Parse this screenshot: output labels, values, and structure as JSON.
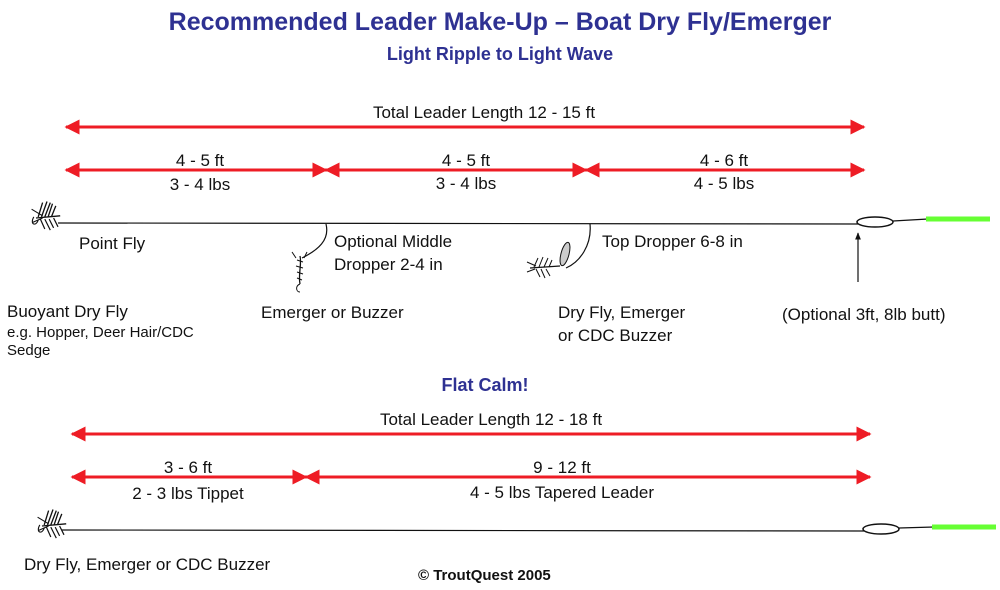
{
  "title": "Recommended Leader Make-Up – Boat Dry Fly/Emerger",
  "subtitle": "Light Ripple to Light Wave",
  "top_rig": {
    "total_length": "Total Leader Length 12 - 15 ft",
    "segments": [
      {
        "length": "4 - 5 ft",
        "strength": "3 - 4 lbs"
      },
      {
        "length": "4 - 5 ft",
        "strength": "3 - 4 lbs"
      },
      {
        "length": "4 - 6 ft",
        "strength": "4 - 5 lbs"
      }
    ],
    "point_fly_label": "Point Fly",
    "middle_dropper_label_1": "Optional Middle",
    "middle_dropper_label_2": "Dropper 2-4 in",
    "top_dropper_label": "Top Dropper 6-8 in",
    "buoyant_label": "Buoyant Dry Fly",
    "buoyant_example_1": "e.g. Hopper, Deer Hair/CDC",
    "buoyant_example_2": "Sedge",
    "emerger_label": "Emerger or Buzzer",
    "dry_fly_label_1": "Dry Fly, Emerger",
    "dry_fly_label_2": "or CDC Buzzer",
    "butt_label": "(Optional 3ft, 8lb butt)"
  },
  "calm_title": "Flat Calm!",
  "bottom_rig": {
    "total_length": "Total Leader Length 12 - 18 ft",
    "segments": [
      {
        "length": "3 - 6 ft",
        "strength": "2 - 3 lbs Tippet"
      },
      {
        "length": "9 - 12 ft",
        "strength": "4 - 5 lbs Tapered Leader"
      }
    ],
    "fly_label": "Dry Fly, Emerger or CDC Buzzer"
  },
  "copyright": "© TroutQuest 2005",
  "colors": {
    "title": "#2e3192",
    "arrow": "#ee1c25",
    "fly_line": "#66ff33",
    "leader": "#111111"
  }
}
